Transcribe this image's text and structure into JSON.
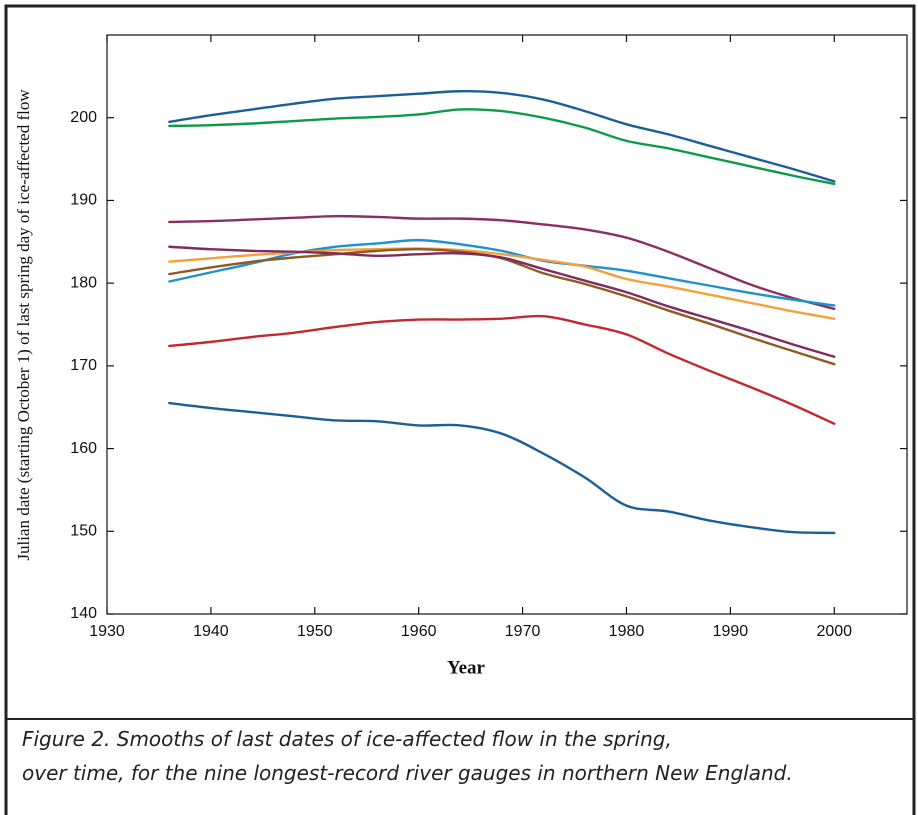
{
  "chart_data": {
    "type": "line",
    "ylabel": "Julian date (starting October 1) of last spring day of ice-affected flow",
    "xlabel": "Year",
    "x": [
      1936,
      1940,
      1944,
      1948,
      1952,
      1956,
      1960,
      1964,
      1968,
      1972,
      1976,
      1980,
      1984,
      1988,
      1992,
      1996,
      2000
    ],
    "series": [
      {
        "color": "#1b5e98",
        "values": [
          199.5,
          200.3,
          201,
          201.7,
          202.3,
          202.6,
          202.9,
          203.2,
          203,
          202.2,
          200.8,
          199.2,
          198,
          196.6,
          195.2,
          193.8,
          192.3
        ]
      },
      {
        "color": "#0e9a4a",
        "values": [
          199,
          199.1,
          199.3,
          199.6,
          199.9,
          200.1,
          200.4,
          201,
          200.8,
          200,
          198.8,
          197.2,
          196.3,
          195.2,
          194.1,
          193,
          192
        ]
      },
      {
        "color": "#8a2e63",
        "values": [
          187.4,
          187.5,
          187.7,
          187.9,
          188.1,
          188,
          187.8,
          187.8,
          187.6,
          187.1,
          186.5,
          185.5,
          183.8,
          181.8,
          179.8,
          178.2,
          176.9
        ]
      },
      {
        "color": "#2190d0",
        "values": [
          180.2,
          181.3,
          182.4,
          183.6,
          184.4,
          184.8,
          185.2,
          184.7,
          183.9,
          182.7,
          182.1,
          181.5,
          180.6,
          179.7,
          178.8,
          178,
          177.3
        ]
      },
      {
        "color": "#f4a03a",
        "values": [
          182.6,
          183,
          183.4,
          183.7,
          184,
          184.1,
          184.2,
          184,
          183.5,
          182.8,
          182,
          180.5,
          179.6,
          178.6,
          177.6,
          176.6,
          175.7
        ]
      },
      {
        "color": "#8e5a24",
        "values": [
          181.1,
          181.9,
          182.6,
          183.1,
          183.5,
          183.9,
          184.1,
          183.8,
          183,
          181.2,
          179.9,
          178.4,
          176.7,
          175.1,
          173.4,
          171.8,
          170.2
        ]
      },
      {
        "color": "#7e2c5f",
        "values": [
          184.4,
          184.1,
          183.9,
          183.8,
          183.6,
          183.3,
          183.5,
          183.6,
          183.1,
          181.7,
          180.3,
          178.9,
          177.2,
          175.7,
          174.2,
          172.6,
          171.1
        ]
      },
      {
        "color": "#c3282f",
        "values": [
          172.4,
          172.9,
          173.5,
          174,
          174.7,
          175.3,
          175.6,
          175.6,
          175.7,
          176,
          175,
          173.8,
          171.5,
          169.4,
          167.4,
          165.3,
          163
        ]
      },
      {
        "color": "#1b5e98",
        "values": [
          165.5,
          164.9,
          164.4,
          163.9,
          163.4,
          163.3,
          162.8,
          162.8,
          161.8,
          159.4,
          156.5,
          153.1,
          152.4,
          151.3,
          150.5,
          149.9,
          149.8
        ]
      }
    ],
    "xlim": [
      1930,
      2007
    ],
    "ylim": [
      140,
      210
    ],
    "xticks": [
      1930,
      1940,
      1950,
      1960,
      1970,
      1980,
      1990,
      2000
    ],
    "yticks": [
      140,
      150,
      160,
      170,
      180,
      190,
      200
    ]
  },
  "caption": [
    "Figure 2.  Smooths of last dates of ice-affected flow in the spring,",
    "over time, for the nine longest-record river gauges in northern New England."
  ]
}
